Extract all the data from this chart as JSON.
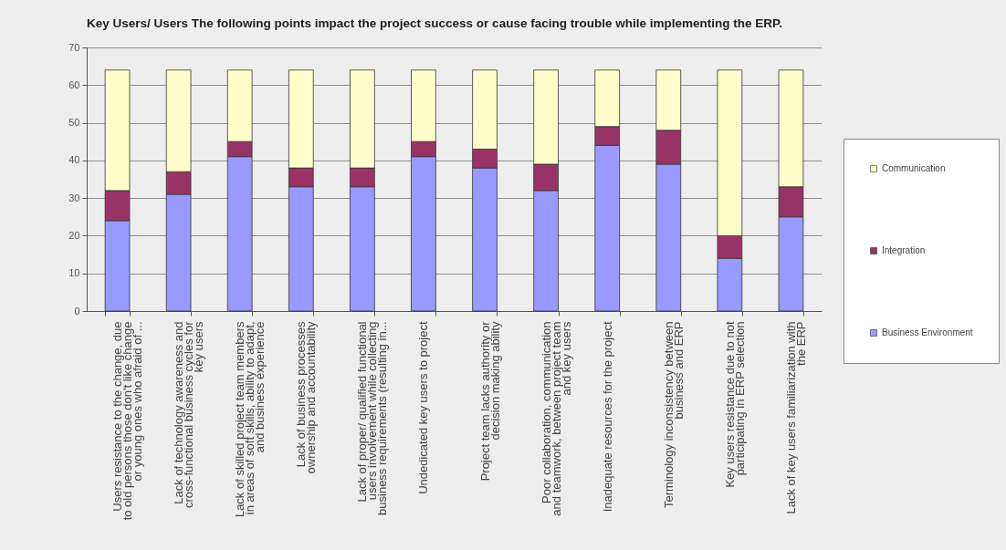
{
  "chart_data": {
    "type": "bar",
    "title": "Key Users/ Users The following points impact the project success or cause facing trouble while implementing the ERP.",
    "categories": [
      "Users resistance to the change, due to old persons those don't like change or young ones who afraid of ...",
      "Lack of technology awareness and cross-functional business cycles for key users",
      "Lack of skilled project team members in areas of soft skills, ability to adapt, and business experience",
      "Lack of business processes ownership and accountability",
      "Lack of proper/ qualified functional users involvement while collecting business requirements (resulting in...",
      "Undedicated key users to project",
      "Project team lacks authority or decision making ability",
      "Poor collaboration, communication and teamwork, between project team and key users",
      "Inadequate resources for the project",
      "Terminology inconsistency between business and ERP",
      "Key users resistance due to not participating in ERP selection",
      "Lack of key users familiarization with the ERP"
    ],
    "stacked": true,
    "series": [
      {
        "name": "Business Environment",
        "color": "#9999ff",
        "values": [
          24,
          31,
          41,
          33,
          33,
          41,
          38,
          32,
          44,
          39,
          14,
          25
        ]
      },
      {
        "name": "Integration",
        "color": "#993366",
        "values": [
          8,
          6,
          4,
          5,
          5,
          4,
          5,
          7,
          5,
          9,
          6,
          8
        ]
      },
      {
        "name": "Communication",
        "color": "#ffffcc",
        "values": [
          32,
          27,
          19,
          26,
          26,
          19,
          21,
          25,
          15,
          16,
          44,
          31
        ]
      }
    ],
    "ylim": [
      0,
      70
    ],
    "yticks": [
      0,
      10,
      20,
      30,
      40,
      50,
      60,
      70
    ],
    "grid": "y",
    "legend": "right"
  }
}
